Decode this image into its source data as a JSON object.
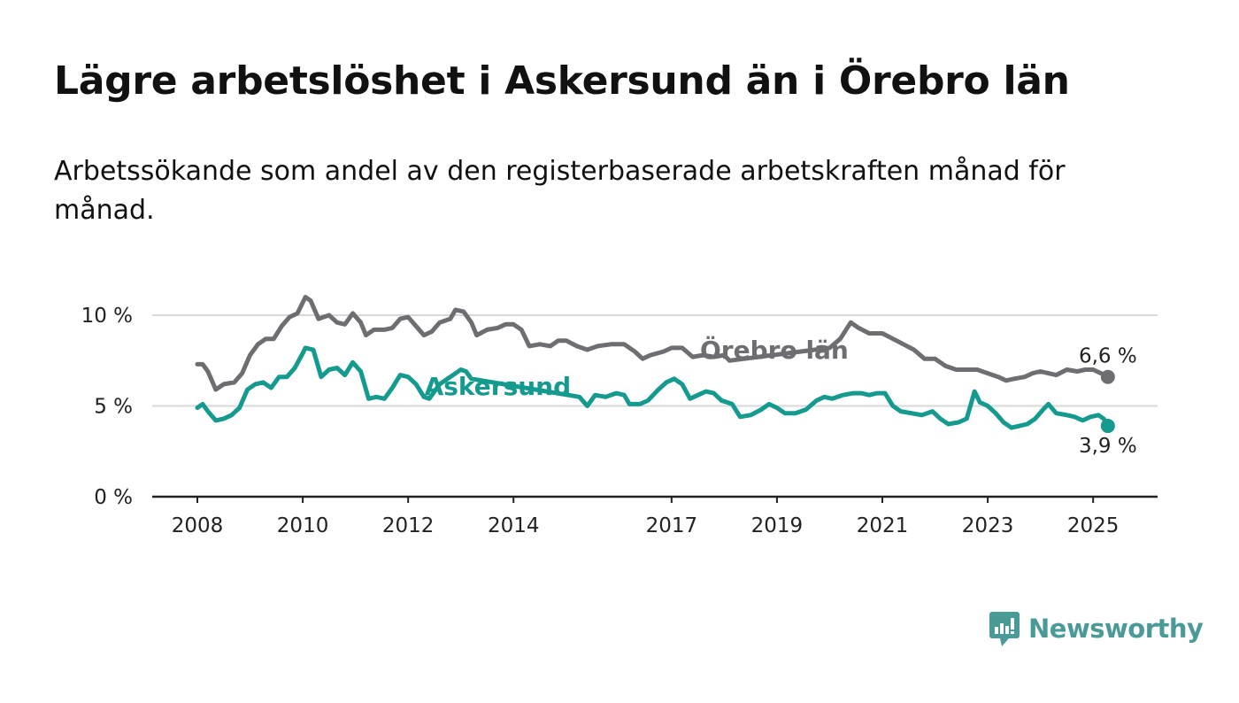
{
  "title": "Lägre arbetslöshet i Askersund än i Örebro län",
  "subtitle": "Arbetssökande som andel av den registerbaserade arbetskraften månad för månad.",
  "brand": {
    "name": "Newsworthy",
    "color": "#4a9a98"
  },
  "chart_data": {
    "type": "line",
    "y_ticks": [
      {
        "value": 0,
        "label": "0 %"
      },
      {
        "value": 5,
        "label": "5 %"
      },
      {
        "value": 10,
        "label": "10 %"
      }
    ],
    "x_ticks": [
      {
        "value": 2008,
        "label": "2008"
      },
      {
        "value": 2010,
        "label": "2010"
      },
      {
        "value": 2012,
        "label": "2012"
      },
      {
        "value": 2014,
        "label": "2014"
      },
      {
        "value": 2017,
        "label": "2017"
      },
      {
        "value": 2019,
        "label": "2019"
      },
      {
        "value": 2021,
        "label": "2021"
      },
      {
        "value": 2023,
        "label": "2023"
      },
      {
        "value": 2025,
        "label": "2025"
      }
    ],
    "xlim": [
      2008,
      2025.35
    ],
    "ylim": [
      0,
      10
    ],
    "grid": true,
    "series": [
      {
        "name": "Örebro län",
        "color": "#6e6d72",
        "end_label": "6,6 %",
        "points": [
          [
            2008.0,
            7.3
          ],
          [
            2008.1,
            7.3
          ],
          [
            2008.2,
            6.9
          ],
          [
            2008.35,
            5.9
          ],
          [
            2008.5,
            6.2
          ],
          [
            2008.7,
            6.3
          ],
          [
            2008.85,
            6.8
          ],
          [
            2009.0,
            7.8
          ],
          [
            2009.15,
            8.4
          ],
          [
            2009.3,
            8.7
          ],
          [
            2009.45,
            8.7
          ],
          [
            2009.6,
            9.4
          ],
          [
            2009.75,
            9.9
          ],
          [
            2009.9,
            10.1
          ],
          [
            2010.0,
            10.7
          ],
          [
            2010.05,
            11.0
          ],
          [
            2010.15,
            10.8
          ],
          [
            2010.3,
            9.8
          ],
          [
            2010.5,
            10.0
          ],
          [
            2010.65,
            9.6
          ],
          [
            2010.8,
            9.5
          ],
          [
            2010.95,
            10.1
          ],
          [
            2011.1,
            9.6
          ],
          [
            2011.2,
            8.9
          ],
          [
            2011.35,
            9.2
          ],
          [
            2011.55,
            9.2
          ],
          [
            2011.7,
            9.3
          ],
          [
            2011.85,
            9.8
          ],
          [
            2012.0,
            9.9
          ],
          [
            2012.15,
            9.4
          ],
          [
            2012.3,
            8.9
          ],
          [
            2012.45,
            9.1
          ],
          [
            2012.6,
            9.6
          ],
          [
            2012.8,
            9.8
          ],
          [
            2012.9,
            10.3
          ],
          [
            2013.05,
            10.2
          ],
          [
            2013.2,
            9.6
          ],
          [
            2013.3,
            8.9
          ],
          [
            2013.5,
            9.2
          ],
          [
            2013.7,
            9.3
          ],
          [
            2013.85,
            9.5
          ],
          [
            2014.0,
            9.5
          ],
          [
            2014.15,
            9.2
          ],
          [
            2014.3,
            8.3
          ],
          [
            2014.5,
            8.4
          ],
          [
            2014.7,
            8.3
          ],
          [
            2014.85,
            8.6
          ],
          [
            2015.0,
            8.6
          ],
          [
            2015.2,
            8.3
          ],
          [
            2015.4,
            8.1
          ],
          [
            2015.6,
            8.3
          ],
          [
            2015.85,
            8.4
          ],
          [
            2016.1,
            8.4
          ],
          [
            2016.3,
            8.0
          ],
          [
            2016.45,
            7.6
          ],
          [
            2016.6,
            7.8
          ],
          [
            2016.85,
            8.0
          ],
          [
            2017.0,
            8.2
          ],
          [
            2017.2,
            8.2
          ],
          [
            2017.4,
            7.7
          ],
          [
            2017.6,
            7.8
          ],
          [
            2017.8,
            7.7
          ],
          [
            2018.0,
            7.8
          ],
          [
            2018.1,
            7.5
          ],
          [
            2020.0,
            8.2
          ],
          [
            2020.2,
            8.7
          ],
          [
            2020.4,
            9.6
          ],
          [
            2020.55,
            9.3
          ],
          [
            2020.75,
            9.0
          ],
          [
            2021.0,
            9.0
          ],
          [
            2021.2,
            8.7
          ],
          [
            2021.4,
            8.4
          ],
          [
            2021.6,
            8.1
          ],
          [
            2021.8,
            7.6
          ],
          [
            2022.0,
            7.6
          ],
          [
            2022.2,
            7.2
          ],
          [
            2022.4,
            7.0
          ],
          [
            2022.6,
            7.0
          ],
          [
            2022.8,
            7.0
          ],
          [
            2023.0,
            6.8
          ],
          [
            2023.2,
            6.6
          ],
          [
            2023.35,
            6.4
          ],
          [
            2023.5,
            6.5
          ],
          [
            2023.7,
            6.6
          ],
          [
            2023.85,
            6.8
          ],
          [
            2024.0,
            6.9
          ],
          [
            2024.15,
            6.8
          ],
          [
            2024.3,
            6.7
          ],
          [
            2024.5,
            7.0
          ],
          [
            2024.7,
            6.9
          ],
          [
            2024.85,
            7.0
          ],
          [
            2025.0,
            7.0
          ],
          [
            2025.15,
            6.8
          ],
          [
            2025.28,
            6.6
          ]
        ],
        "label": {
          "text": "Örebro län",
          "x": 2018.95,
          "y": 7.6
        }
      },
      {
        "name": "Askersund",
        "color": "#149a8e",
        "end_label": "3,9 %",
        "points": [
          [
            2008.0,
            4.9
          ],
          [
            2008.1,
            5.1
          ],
          [
            2008.2,
            4.7
          ],
          [
            2008.35,
            4.2
          ],
          [
            2008.5,
            4.3
          ],
          [
            2008.65,
            4.5
          ],
          [
            2008.8,
            4.9
          ],
          [
            2008.95,
            5.9
          ],
          [
            2009.1,
            6.2
          ],
          [
            2009.25,
            6.3
          ],
          [
            2009.4,
            6.0
          ],
          [
            2009.55,
            6.6
          ],
          [
            2009.7,
            6.6
          ],
          [
            2009.85,
            7.1
          ],
          [
            2010.0,
            7.9
          ],
          [
            2010.05,
            8.2
          ],
          [
            2010.2,
            8.1
          ],
          [
            2010.35,
            6.6
          ],
          [
            2010.5,
            7.0
          ],
          [
            2010.65,
            7.1
          ],
          [
            2010.8,
            6.7
          ],
          [
            2010.95,
            7.4
          ],
          [
            2011.1,
            6.9
          ],
          [
            2011.25,
            5.4
          ],
          [
            2011.4,
            5.5
          ],
          [
            2011.55,
            5.4
          ],
          [
            2011.7,
            6.0
          ],
          [
            2011.85,
            6.7
          ],
          [
            2012.0,
            6.6
          ],
          [
            2012.15,
            6.2
          ],
          [
            2012.3,
            5.5
          ],
          [
            2012.4,
            5.4
          ],
          [
            2012.6,
            6.2
          ],
          [
            2012.8,
            6.6
          ],
          [
            2013.0,
            7.0
          ],
          [
            2013.1,
            6.9
          ],
          [
            2013.2,
            6.5
          ],
          [
            2015.25,
            5.5
          ],
          [
            2015.4,
            5.0
          ],
          [
            2015.55,
            5.6
          ],
          [
            2015.75,
            5.5
          ],
          [
            2015.95,
            5.7
          ],
          [
            2016.1,
            5.6
          ],
          [
            2016.2,
            5.1
          ],
          [
            2016.4,
            5.1
          ],
          [
            2016.55,
            5.3
          ],
          [
            2016.75,
            5.9
          ],
          [
            2016.9,
            6.3
          ],
          [
            2017.05,
            6.5
          ],
          [
            2017.2,
            6.2
          ],
          [
            2017.35,
            5.4
          ],
          [
            2017.5,
            5.6
          ],
          [
            2017.65,
            5.8
          ],
          [
            2017.8,
            5.7
          ],
          [
            2017.95,
            5.3
          ],
          [
            2018.15,
            5.1
          ],
          [
            2018.3,
            4.4
          ],
          [
            2018.5,
            4.5
          ],
          [
            2018.7,
            4.8
          ],
          [
            2018.85,
            5.1
          ],
          [
            2019.0,
            4.9
          ],
          [
            2019.15,
            4.6
          ],
          [
            2019.35,
            4.6
          ],
          [
            2019.55,
            4.8
          ],
          [
            2019.75,
            5.3
          ],
          [
            2019.9,
            5.5
          ],
          [
            2020.05,
            5.4
          ],
          [
            2020.25,
            5.6
          ],
          [
            2020.45,
            5.7
          ],
          [
            2020.6,
            5.7
          ],
          [
            2020.75,
            5.6
          ],
          [
            2020.9,
            5.7
          ],
          [
            2021.05,
            5.7
          ],
          [
            2021.2,
            5.0
          ],
          [
            2021.35,
            4.7
          ],
          [
            2021.55,
            4.6
          ],
          [
            2021.75,
            4.5
          ],
          [
            2021.95,
            4.7
          ],
          [
            2022.1,
            4.3
          ],
          [
            2022.25,
            4.0
          ],
          [
            2022.45,
            4.1
          ],
          [
            2022.6,
            4.3
          ],
          [
            2022.75,
            5.8
          ],
          [
            2022.85,
            5.2
          ],
          [
            2023.0,
            5.0
          ],
          [
            2023.15,
            4.6
          ],
          [
            2023.3,
            4.1
          ],
          [
            2023.45,
            3.8
          ],
          [
            2023.6,
            3.9
          ],
          [
            2023.75,
            4.0
          ],
          [
            2023.9,
            4.3
          ],
          [
            2024.05,
            4.8
          ],
          [
            2024.15,
            5.1
          ],
          [
            2024.3,
            4.6
          ],
          [
            2024.5,
            4.5
          ],
          [
            2024.65,
            4.4
          ],
          [
            2024.8,
            4.2
          ],
          [
            2024.95,
            4.4
          ],
          [
            2025.1,
            4.5
          ],
          [
            2025.2,
            4.3
          ],
          [
            2025.28,
            3.9
          ]
        ],
        "label": {
          "text": "Askersund",
          "x": 2013.7,
          "y": 5.6
        }
      }
    ]
  }
}
